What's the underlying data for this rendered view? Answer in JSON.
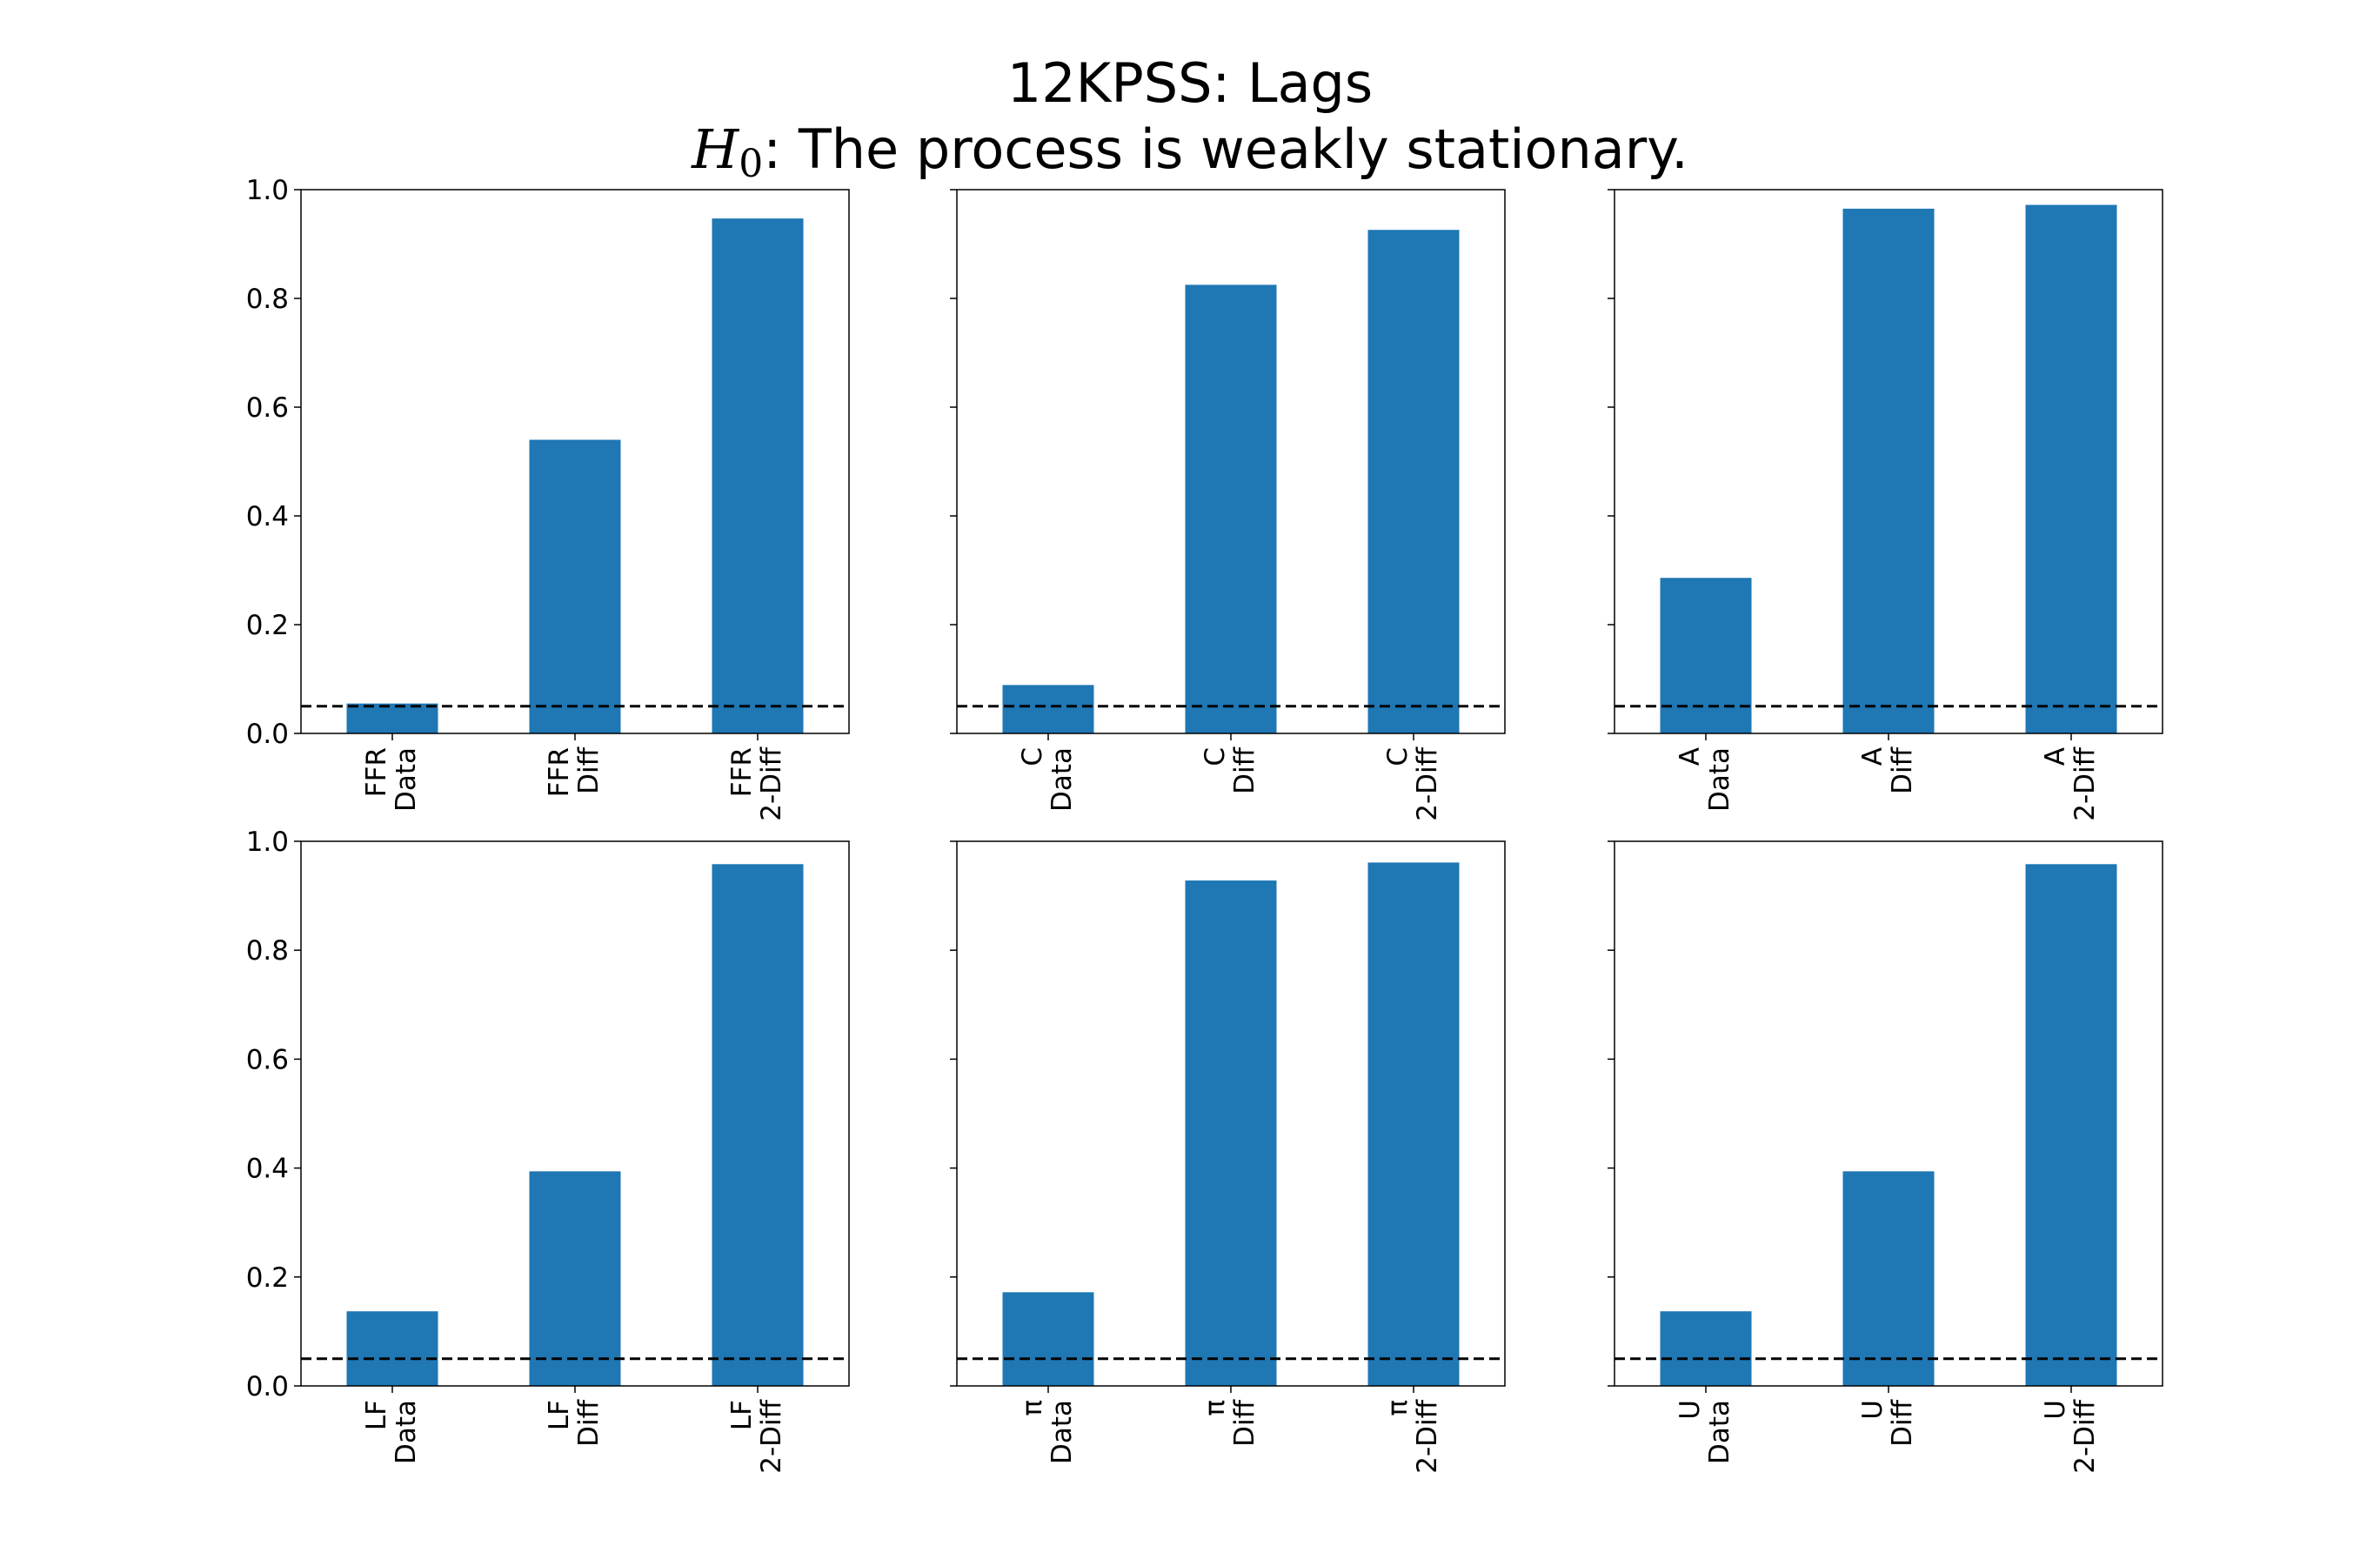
{
  "title": {
    "line1": "12KPSS: Lags",
    "h0_symbol": "H",
    "h0_subscript": "0",
    "line2_rest": ":  The process is weakly stationary."
  },
  "colors": {
    "bar": "#1f77b4",
    "threshold_line": "#000000",
    "axes": "#000000"
  },
  "chart_data": [
    {
      "type": "bar",
      "title": "",
      "xlabel": "",
      "ylabel": "",
      "categories": [
        "FFR\nData",
        "FFR\nDiff",
        "FFR\n2-Diff"
      ],
      "values": [
        0.055,
        0.54,
        0.947
      ],
      "ylim": [
        0,
        1.0
      ],
      "yticks": [
        "0.0",
        "0.2",
        "0.4",
        "0.6",
        "0.8",
        "1.0"
      ],
      "threshold": 0.05,
      "threshold_style": "dashed",
      "grid": false
    },
    {
      "type": "bar",
      "title": "",
      "xlabel": "",
      "ylabel": "",
      "categories": [
        "C\nData",
        "C\nDiff",
        "C\n2-Diff"
      ],
      "values": [
        0.089,
        0.825,
        0.926
      ],
      "ylim": [
        0,
        1.0
      ],
      "threshold": 0.05,
      "threshold_style": "dashed",
      "grid": false
    },
    {
      "type": "bar",
      "title": "",
      "xlabel": "",
      "ylabel": "",
      "categories": [
        "A\nData",
        "A\nDiff",
        "A\n2-Diff"
      ],
      "values": [
        0.286,
        0.965,
        0.972
      ],
      "ylim": [
        0,
        1.0
      ],
      "threshold": 0.05,
      "threshold_style": "dashed",
      "grid": false
    },
    {
      "type": "bar",
      "title": "",
      "xlabel": "",
      "ylabel": "",
      "categories": [
        "LF\nData",
        "LF\nDiff",
        "LF\n2-Diff"
      ],
      "values": [
        0.137,
        0.394,
        0.958
      ],
      "ylim": [
        0,
        1.0
      ],
      "yticks": [
        "0.0",
        "0.2",
        "0.4",
        "0.6",
        "0.8",
        "1.0"
      ],
      "threshold": 0.05,
      "threshold_style": "dashed",
      "grid": false
    },
    {
      "type": "bar",
      "title": "",
      "xlabel": "",
      "ylabel": "",
      "categories": [
        "π\nData",
        "π\nDiff",
        "π\n2-Diff"
      ],
      "values": [
        0.172,
        0.928,
        0.961
      ],
      "ylim": [
        0,
        1.0
      ],
      "threshold": 0.05,
      "threshold_style": "dashed",
      "grid": false
    },
    {
      "type": "bar",
      "title": "",
      "xlabel": "",
      "ylabel": "",
      "categories": [
        "U\nData",
        "U\nDiff",
        "U\n2-Diff"
      ],
      "values": [
        0.137,
        0.394,
        0.958
      ],
      "ylim": [
        0,
        1.0
      ],
      "threshold": 0.05,
      "threshold_style": "dashed",
      "grid": false
    }
  ]
}
